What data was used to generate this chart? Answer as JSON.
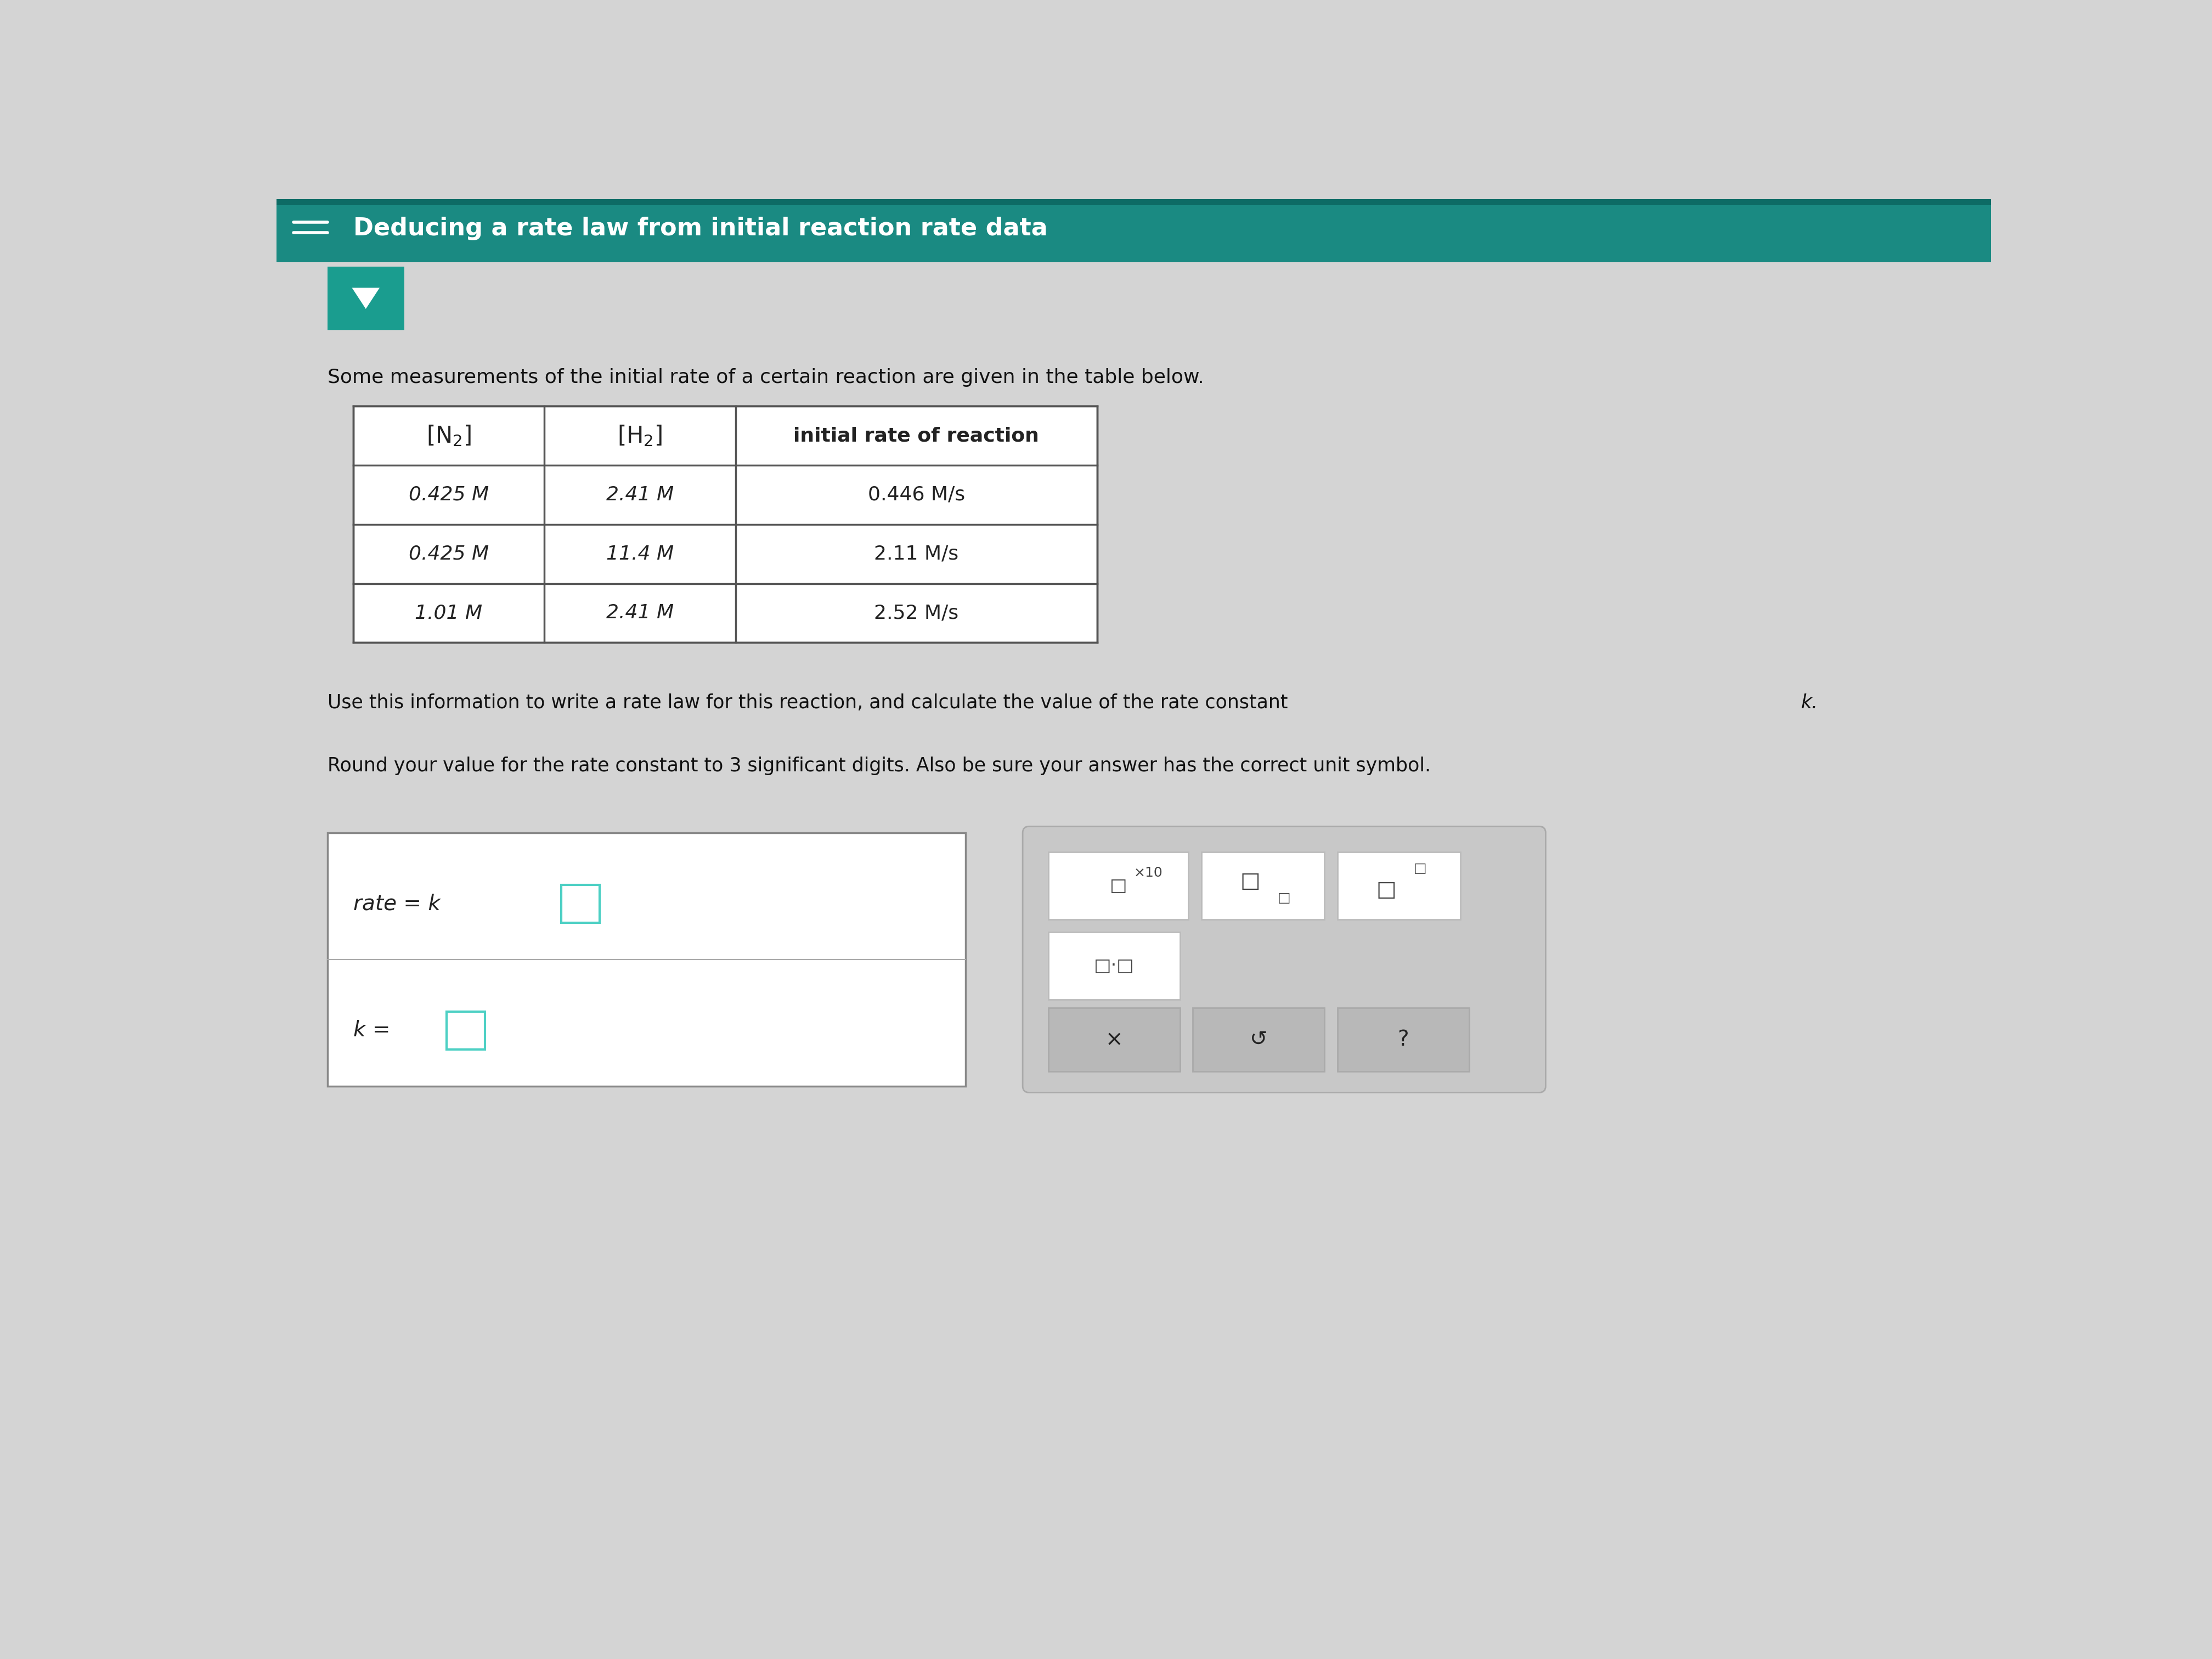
{
  "title": "Deducing a rate law from initial reaction rate data",
  "title_bg_color": "#1a8a82",
  "title_text_color": "#ffffff",
  "page_bg_color": "#c8c8c8",
  "content_bg_color": "#d4d4d4",
  "intro_text": "Some measurements of the initial rate of a certain reaction are given in the table below.",
  "table_headers": [
    "[N₂]",
    "[H₂]",
    "initial rate of reaction"
  ],
  "table_rows": [
    [
      "0.425 M",
      "2.41 M",
      "0.446 M/s"
    ],
    [
      "0.425 M",
      "11.4 M",
      "2.11 M/s"
    ],
    [
      "1.01 M",
      "2.41 M",
      "2.52 M/s"
    ]
  ],
  "instruction1": "Use this information to write a rate law for this reaction, and calculate the value of the rate constant k.",
  "instruction2": "Round your value for the rate constant to 3 significant digits. Also be sure your answer has the correct unit symbol.",
  "action_buttons": [
    "×",
    "↺",
    "?"
  ],
  "teal_arrow_color": "#1a9d8f",
  "teal_small_box_color": "#4dd0c4",
  "toolbar_bg_color": "#d0d0d0"
}
